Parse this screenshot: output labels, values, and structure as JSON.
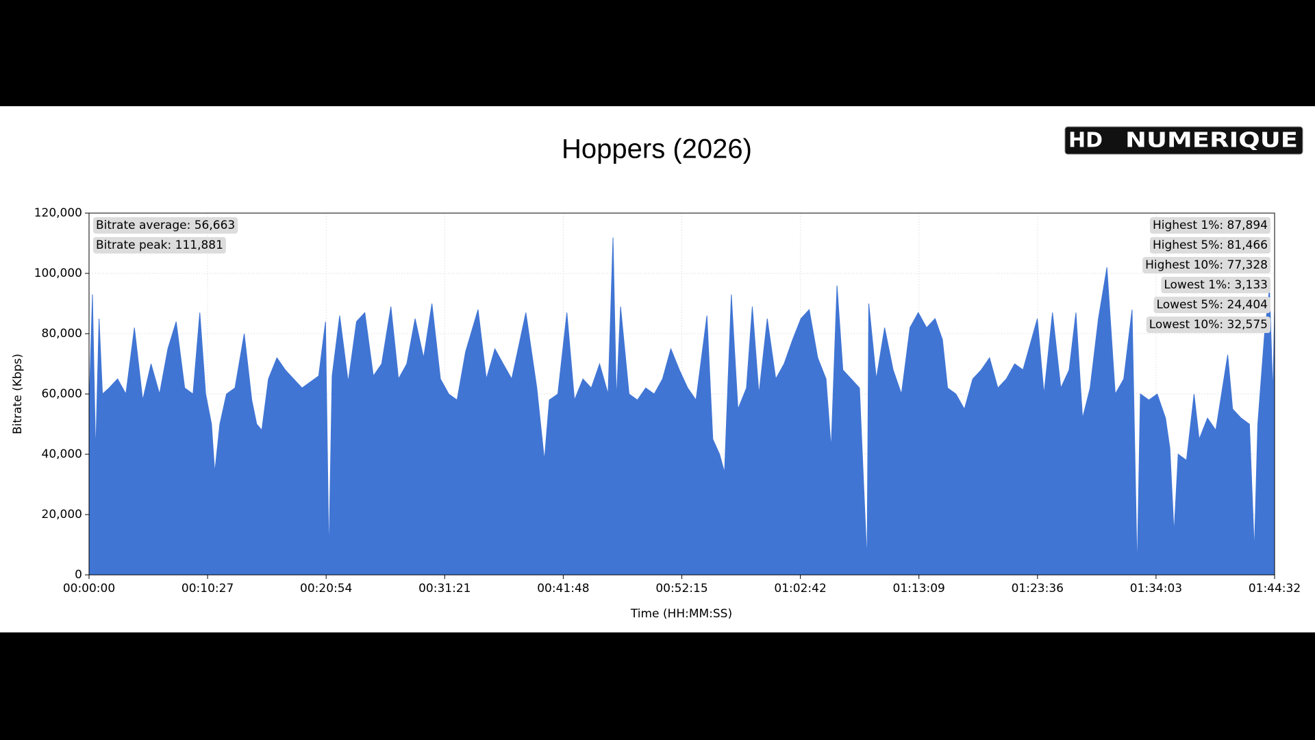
{
  "chart_data": {
    "type": "area",
    "title": "Hoppers (2026)",
    "logo": [
      "HD",
      "NUMERIQUE"
    ],
    "xlabel": "Time (HH:MM:SS)",
    "ylabel": "Bitrate (Kbps)",
    "color": "#4075d4",
    "grid": true,
    "xlim": [
      0,
      6272
    ],
    "ylim": [
      0,
      120000
    ],
    "xticks": [
      {
        "value": 0,
        "label": "00:00:00"
      },
      {
        "value": 627.2,
        "label": "00:10:27"
      },
      {
        "value": 1254.4,
        "label": "00:20:54"
      },
      {
        "value": 1881.6,
        "label": "00:31:21"
      },
      {
        "value": 2508.8,
        "label": "00:41:48"
      },
      {
        "value": 3136,
        "label": "00:52:15"
      },
      {
        "value": 3763.2,
        "label": "01:02:42"
      },
      {
        "value": 4390.4,
        "label": "01:13:09"
      },
      {
        "value": 5017.6,
        "label": "01:23:36"
      },
      {
        "value": 5644.8,
        "label": "01:34:03"
      },
      {
        "value": 6272,
        "label": "01:44:32"
      }
    ],
    "yticks": [
      0,
      {
        "value": 20000,
        "label": "20,000"
      },
      {
        "value": 40000,
        "label": "40,000"
      },
      {
        "value": 60000,
        "label": "60,000"
      },
      {
        "value": 80000,
        "label": "80,000"
      },
      {
        "value": 100000,
        "label": "100,000"
      },
      {
        "value": 120000,
        "label": "120,000"
      }
    ],
    "stats_left": [
      "Bitrate average: 56,663",
      "Bitrate peak: 111,881"
    ],
    "stats_right": [
      "Highest 1%: 87,894",
      "Highest 5%: 81,466",
      "Highest 10%: 77,328",
      "Lowest 1%: 3,133",
      "Lowest 5%: 24,404",
      "Lowest 10%: 32,575"
    ],
    "x": [
      0,
      18,
      35,
      53,
      71,
      106,
      151,
      195,
      240,
      284,
      328,
      373,
      417,
      461,
      506,
      550,
      586,
      617,
      648,
      665,
      692,
      727,
      772,
      821,
      861,
      887,
      914,
      949,
      994,
      1038,
      1082,
      1127,
      1171,
      1215,
      1251,
      1269,
      1286,
      1326,
      1371,
      1415,
      1459,
      1504,
      1548,
      1597,
      1637,
      1681,
      1725,
      1770,
      1814,
      1859,
      1903,
      1947,
      1992,
      2058,
      2102,
      2147,
      2191,
      2236,
      2311,
      2369,
      2409,
      2435,
      2480,
      2528,
      2568,
      2613,
      2657,
      2701,
      2746,
      2772,
      2790,
      2812,
      2857,
      2901,
      2945,
      2990,
      3034,
      3078,
      3123,
      3167,
      3211,
      3269,
      3300,
      3336,
      3362,
      3398,
      3433,
      3478,
      3509,
      3544,
      3588,
      3633,
      3677,
      3722,
      3766,
      3810,
      3855,
      3899,
      3926,
      3957,
      3988,
      4032,
      4076,
      4116,
      4125,
      4165,
      4209,
      4254,
      4298,
      4343,
      4387,
      4431,
      4476,
      4515,
      4542,
      4586,
      4631,
      4675,
      4720,
      4764,
      4808,
      4853,
      4897,
      4941,
      5017,
      5052,
      5097,
      5141,
      5185,
      5221,
      5256,
      5296,
      5340,
      5385,
      5429,
      5474,
      5518,
      5545,
      5562,
      5607,
      5651,
      5695,
      5718,
      5740,
      5762,
      5806,
      5846,
      5873,
      5917,
      5961,
      6024,
      6050,
      6095,
      6139,
      6165,
      6183,
      6219,
      6245,
      6263,
      6272
    ],
    "values": [
      55000,
      93000,
      40000,
      85000,
      60000,
      62000,
      65000,
      60000,
      82000,
      58000,
      70000,
      60000,
      75000,
      84000,
      62000,
      60000,
      87000,
      60000,
      50000,
      34000,
      50000,
      60000,
      62000,
      80000,
      58000,
      50000,
      48000,
      65000,
      72000,
      68000,
      65000,
      62000,
      64000,
      66000,
      84000,
      6000,
      66000,
      86000,
      64000,
      84000,
      87000,
      66000,
      70000,
      89000,
      65000,
      70000,
      85000,
      72000,
      90000,
      65000,
      60000,
      58000,
      74000,
      88000,
      65000,
      75000,
      70000,
      65000,
      87000,
      62000,
      38000,
      58000,
      60000,
      87000,
      58000,
      65000,
      62000,
      70000,
      60000,
      111881,
      58000,
      89000,
      60000,
      58000,
      62000,
      60000,
      65000,
      75000,
      68000,
      62000,
      58000,
      86000,
      45000,
      40000,
      34000,
      93000,
      55000,
      62000,
      89000,
      60000,
      85000,
      65000,
      70000,
      78000,
      85000,
      88000,
      72000,
      65000,
      42000,
      96000,
      68000,
      65000,
      62000,
      4000,
      90000,
      65000,
      82000,
      68000,
      60000,
      82000,
      87000,
      82000,
      85000,
      78000,
      62000,
      60000,
      55000,
      65000,
      68000,
      72000,
      62000,
      65000,
      70000,
      68000,
      85000,
      60000,
      87000,
      62000,
      68000,
      87000,
      52000,
      62000,
      85000,
      102000,
      60000,
      65000,
      88000,
      1500,
      60000,
      58000,
      60000,
      52000,
      42000,
      14000,
      40000,
      38000,
      60000,
      45000,
      52000,
      48000,
      73000,
      55000,
      52000,
      50000,
      8000,
      50000,
      80000,
      95000,
      60000,
      88000
    ]
  }
}
